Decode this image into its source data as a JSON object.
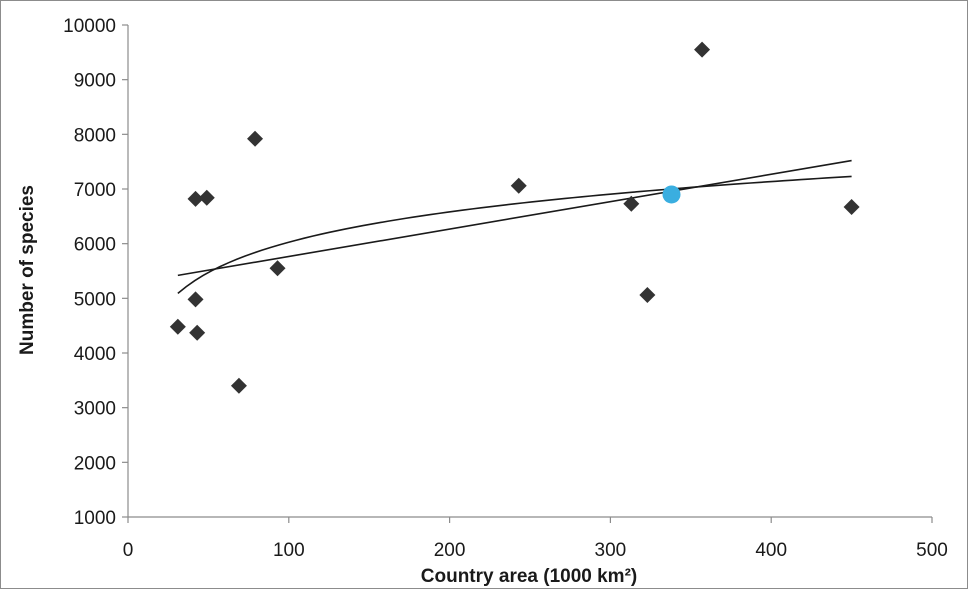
{
  "chart_data": {
    "type": "scatter",
    "title": "",
    "xlabel": "Country area (1000 km²)",
    "ylabel": "Number of species",
    "xlim": [
      0,
      500
    ],
    "ylim": [
      1000,
      10000
    ],
    "xticks": [
      "0",
      "100",
      "200",
      "300",
      "400",
      "500"
    ],
    "yticks": [
      "1000",
      "2000",
      "3000",
      "4000",
      "5000",
      "6000",
      "7000",
      "8000",
      "9000",
      "10000"
    ],
    "grid": false,
    "legend": "none",
    "series": [
      {
        "marker": "diamond",
        "color": "#333333",
        "points": [
          {
            "x": 31,
            "y": 4480
          },
          {
            "x": 42,
            "y": 6820
          },
          {
            "x": 49,
            "y": 6840
          },
          {
            "x": 42,
            "y": 4980
          },
          {
            "x": 43,
            "y": 4370
          },
          {
            "x": 69,
            "y": 3400
          },
          {
            "x": 79,
            "y": 7920
          },
          {
            "x": 93,
            "y": 5550
          },
          {
            "x": 243,
            "y": 7060
          },
          {
            "x": 313,
            "y": 6730
          },
          {
            "x": 323,
            "y": 5060
          },
          {
            "x": 357,
            "y": 9550
          },
          {
            "x": 450,
            "y": 6670
          }
        ]
      },
      {
        "marker": "circle",
        "color": "#3aaee0",
        "points": [
          {
            "x": 338,
            "y": 6900
          }
        ]
      }
    ],
    "trendlines": [
      {
        "type": "linear",
        "x_range": [
          31,
          450
        ],
        "y_start": 5420,
        "y_end": 7520
      },
      {
        "type": "logarithmic",
        "x_range": [
          31,
          450
        ],
        "y_start": 5090,
        "y_end": 7230
      }
    ]
  }
}
